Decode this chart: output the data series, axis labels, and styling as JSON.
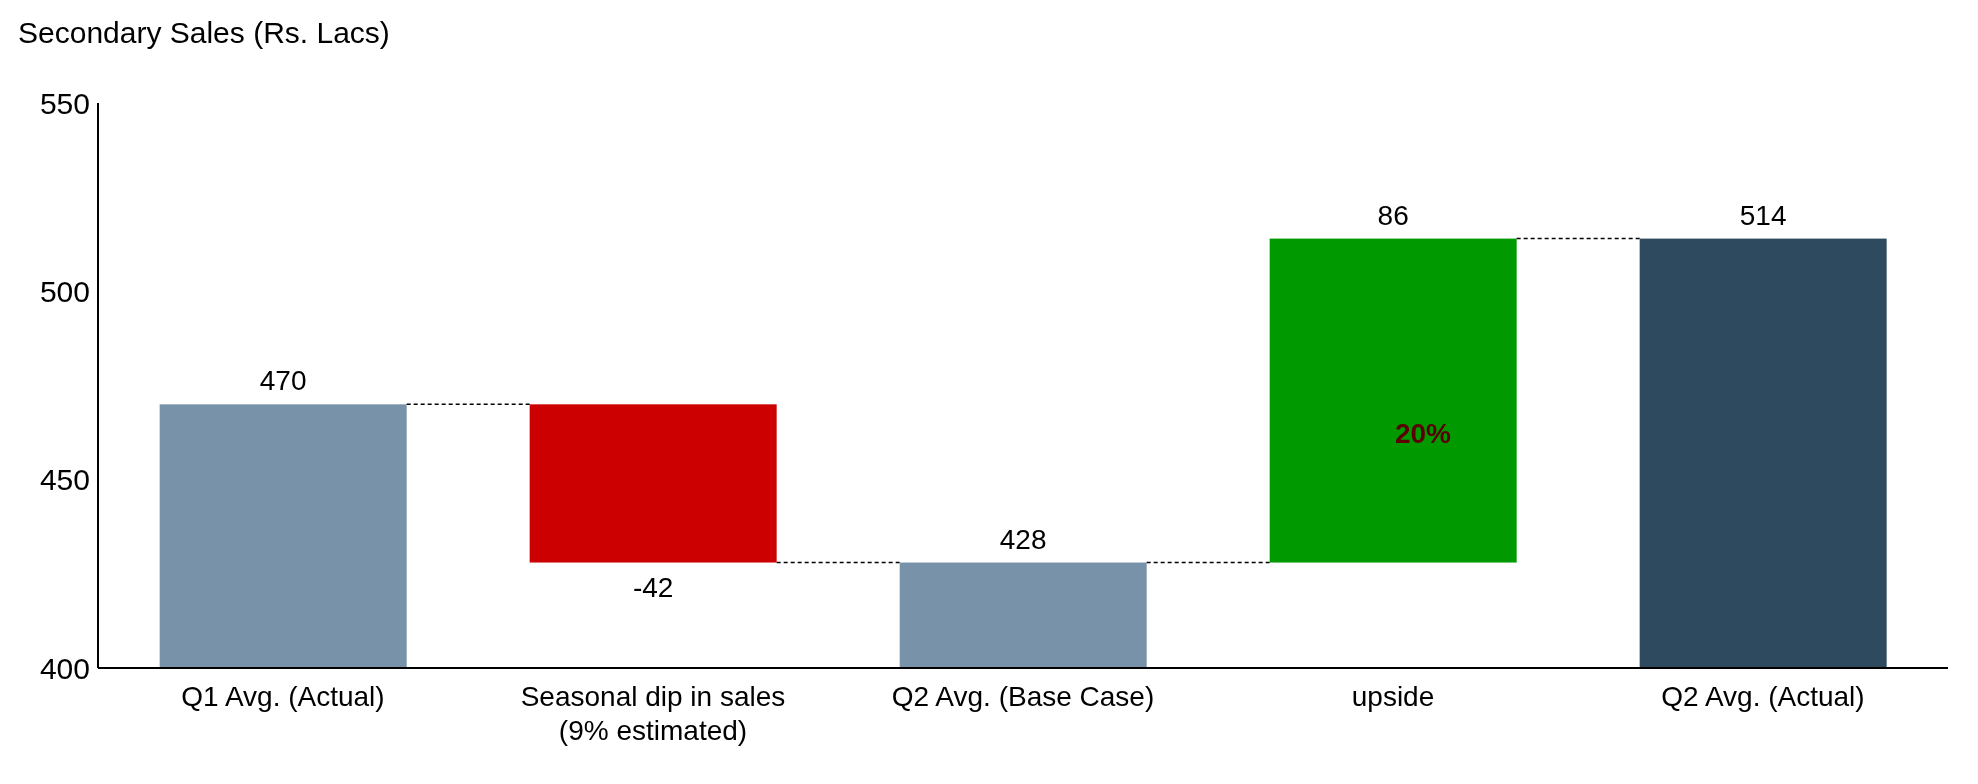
{
  "chart_data": {
    "type": "bar",
    "title": "Secondary Sales (Rs. Lacs)",
    "categories": [
      "Q1 Avg. (Actual)",
      "Seasonal dip in sales (9% estimated)",
      "Q2 Avg. (Base Case)",
      "upside",
      "Q2 Avg. (Actual)"
    ],
    "values": [
      470,
      -42,
      428,
      86,
      514
    ],
    "base": [
      0,
      470,
      0,
      428,
      0
    ],
    "colors": [
      "#7892aa",
      "#cc0000",
      "#7892aa",
      "#009900",
      "#2d4a5e"
    ],
    "ylim": [
      400,
      550
    ],
    "yticks": [
      400,
      450,
      500,
      550
    ],
    "grid": false,
    "legend": false,
    "data_labels": true,
    "annotations": [
      "20%"
    ]
  }
}
